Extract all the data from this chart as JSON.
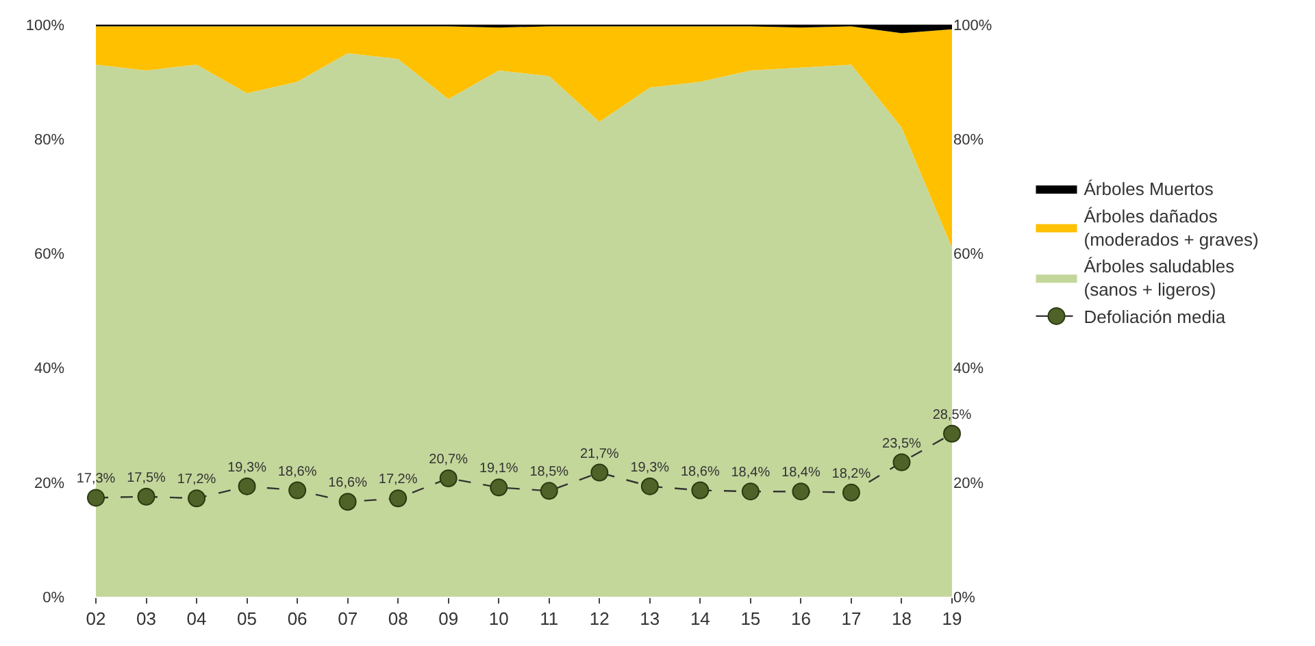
{
  "chart_data": {
    "type": "area",
    "stacked": true,
    "categories": [
      "02",
      "03",
      "04",
      "05",
      "06",
      "07",
      "08",
      "09",
      "10",
      "11",
      "12",
      "13",
      "14",
      "15",
      "16",
      "17",
      "18",
      "19"
    ],
    "series": [
      {
        "name": "Árboles saludables\n(sanos + ligeros)",
        "color": "#c4d79b",
        "values": [
          93,
          92,
          93,
          88,
          90,
          95,
          94,
          87,
          92,
          91,
          83,
          89,
          90,
          92,
          92.5,
          93,
          82,
          61
        ]
      },
      {
        "name": "Árboles dañados\n(moderados + graves)",
        "color": "#ffc000",
        "values": [
          6.7,
          7.7,
          6.7,
          11.7,
          9.7,
          4.7,
          5.7,
          12.7,
          7.5,
          8.7,
          16.7,
          10.7,
          9.7,
          7.7,
          7,
          6.7,
          16.5,
          38.2
        ]
      },
      {
        "name": "Árboles Muertos",
        "color": "#000000",
        "values": [
          0.3,
          0.3,
          0.3,
          0.3,
          0.3,
          0.3,
          0.3,
          0.3,
          0.5,
          0.3,
          0.3,
          0.3,
          0.3,
          0.3,
          0.5,
          0.3,
          1.5,
          0.8
        ]
      },
      {
        "name": "Defoliación media",
        "type": "line",
        "color": "#4f6228",
        "marker": "circle",
        "line_style": "dashed",
        "values": [
          17.3,
          17.5,
          17.2,
          19.3,
          18.6,
          16.6,
          17.2,
          20.7,
          19.1,
          18.5,
          21.7,
          19.3,
          18.6,
          18.4,
          18.4,
          18.2,
          23.5,
          28.5
        ],
        "value_labels": [
          "17,3%",
          "17,5%",
          "17,2%",
          "19,3%",
          "18,6%",
          "16,6%",
          "17,2%",
          "20,7%",
          "19,1%",
          "18,5%",
          "21,7%",
          "19,3%",
          "18,6%",
          "18,4%",
          "18,4%",
          "18,2%",
          "23,5%",
          "28,5%"
        ]
      }
    ],
    "ylim": [
      0,
      100
    ],
    "yticks": [
      {
        "value": 0,
        "label": "0%"
      },
      {
        "value": 20,
        "label": "20%"
      },
      {
        "value": 40,
        "label": "40%"
      },
      {
        "value": 60,
        "label": "60%"
      },
      {
        "value": 80,
        "label": "80%"
      },
      {
        "value": 100,
        "label": "100%"
      }
    ],
    "y2lim": [
      0,
      100
    ],
    "y2ticks": [
      {
        "value": 0,
        "label": "0%"
      },
      {
        "value": 20,
        "label": "20%"
      },
      {
        "value": 40,
        "label": "40%"
      },
      {
        "value": 60,
        "label": "60%"
      },
      {
        "value": 80,
        "label": "80%"
      },
      {
        "value": 100,
        "label": "100%"
      }
    ],
    "legend": "right"
  }
}
